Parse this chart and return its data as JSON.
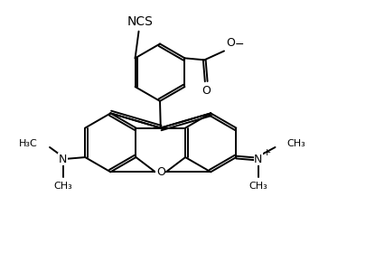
{
  "bg_color": "#ffffff",
  "line_color": "#000000",
  "lw": 1.4,
  "figsize": [
    4.15,
    2.8
  ],
  "dpi": 100,
  "xlim": [
    0,
    10
  ],
  "ylim": [
    0,
    7
  ]
}
